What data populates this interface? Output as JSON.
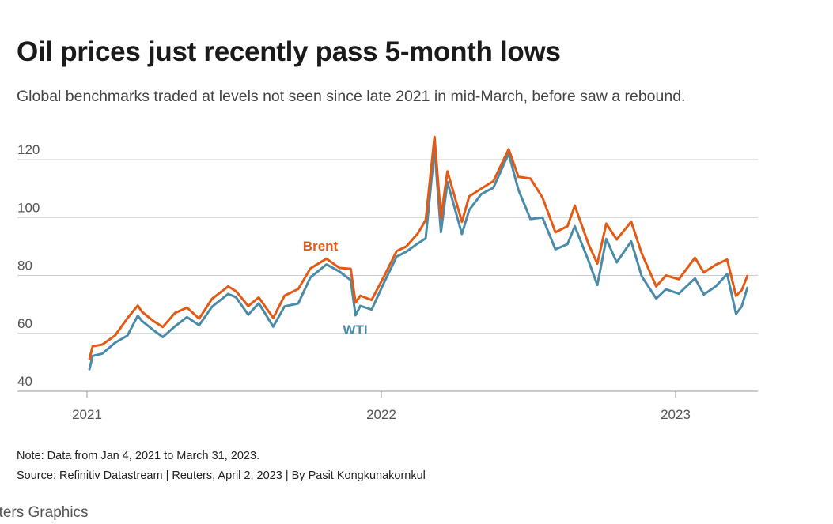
{
  "header": {
    "title": "Oil prices just recently pass 5-month lows",
    "subtitle": "Global benchmarks traded at levels not seen since late 2021 in mid-March, before saw a rebound."
  },
  "notes": {
    "note": "Note: Data from Jan 4, 2021 to March 31, 2023.",
    "source": "Source: Refinitiv Datastream | Reuters, April 2, 2023 | By Pasit Kongkunakornkul"
  },
  "footer": {
    "brand": "uters Graphics"
  },
  "colors": {
    "brent": "#e35a14",
    "wti": "#4a8ba8",
    "grid": "#cccccc",
    "axis": "#999999"
  },
  "chart_data": {
    "type": "line",
    "title": "Oil prices just recently pass 5-month lows",
    "xlabel": "",
    "ylabel": "",
    "ylim": [
      40,
      128
    ],
    "xlim": [
      "2021-01-04",
      "2023-04-30"
    ],
    "yticks": [
      40,
      60,
      80,
      100,
      120
    ],
    "xticks": [
      {
        "date": "2021-01-01",
        "label": "2021"
      },
      {
        "date": "2022-01-01",
        "label": "2022"
      },
      {
        "date": "2023-01-01",
        "label": "2023"
      }
    ],
    "grid": "horizontal",
    "x": [
      "2021-01-04",
      "2021-01-08",
      "2021-01-20",
      "2021-02-05",
      "2021-02-20",
      "2021-03-05",
      "2021-03-10",
      "2021-03-24",
      "2021-04-05",
      "2021-04-20",
      "2021-05-05",
      "2021-05-20",
      "2021-06-05",
      "2021-06-25",
      "2021-07-05",
      "2021-07-20",
      "2021-08-02",
      "2021-08-20",
      "2021-09-03",
      "2021-09-20",
      "2021-10-05",
      "2021-10-25",
      "2021-11-10",
      "2021-11-24",
      "2021-11-30",
      "2021-12-06",
      "2021-12-20",
      "2022-01-05",
      "2022-01-20",
      "2022-02-01",
      "2022-02-15",
      "2022-02-25",
      "2022-03-08",
      "2022-03-16",
      "2022-03-24",
      "2022-04-11",
      "2022-04-20",
      "2022-05-05",
      "2022-05-20",
      "2022-06-08",
      "2022-06-20",
      "2022-07-05",
      "2022-07-20",
      "2022-08-05",
      "2022-08-20",
      "2022-08-29",
      "2022-09-15",
      "2022-09-26",
      "2022-10-07",
      "2022-10-20",
      "2022-11-07",
      "2022-11-20",
      "2022-12-08",
      "2022-12-20",
      "2023-01-05",
      "2023-01-25",
      "2023-02-05",
      "2023-02-20",
      "2023-03-06",
      "2023-03-17",
      "2023-03-24",
      "2023-03-31"
    ],
    "series": [
      {
        "name": "Brent",
        "values": [
          51.1,
          55.5,
          56.1,
          59.3,
          65.2,
          69.6,
          67.5,
          64.3,
          62.2,
          67.0,
          68.9,
          65.1,
          71.9,
          76.2,
          74.5,
          69.4,
          72.4,
          65.3,
          73.0,
          75.3,
          82.4,
          85.8,
          82.6,
          82.3,
          70.6,
          73.0,
          71.5,
          80.0,
          88.4,
          90.0,
          94.4,
          99.1,
          127.9,
          99.9,
          116.0,
          98.5,
          107.3,
          110.0,
          112.6,
          123.6,
          114.1,
          113.5,
          106.9,
          94.9,
          97.0,
          104.1,
          90.8,
          84.1,
          97.9,
          92.4,
          98.6,
          87.6,
          76.2,
          80.0,
          78.7,
          86.1,
          81.0,
          83.7,
          85.5,
          72.9,
          74.9,
          79.8
        ]
      },
      {
        "name": "WTI",
        "values": [
          47.6,
          52.2,
          53.0,
          56.8,
          59.2,
          66.1,
          64.3,
          61.2,
          58.7,
          62.4,
          65.6,
          62.8,
          69.2,
          73.6,
          72.4,
          66.4,
          70.4,
          62.3,
          69.3,
          70.3,
          79.3,
          83.8,
          81.4,
          78.4,
          66.2,
          69.5,
          68.2,
          77.9,
          86.5,
          88.2,
          91.0,
          92.8,
          123.7,
          95.0,
          112.3,
          94.3,
          102.6,
          108.1,
          110.3,
          122.1,
          109.6,
          99.5,
          100.0,
          89.0,
          90.8,
          97.0,
          85.1,
          76.7,
          92.6,
          84.5,
          91.8,
          79.7,
          72.0,
          75.2,
          73.7,
          79.0,
          73.4,
          76.3,
          80.5,
          66.7,
          69.3,
          75.7
        ]
      }
    ],
    "annotations": [
      {
        "text": "Brent",
        "series": "Brent",
        "near": "2021-10-25"
      },
      {
        "text": "WTI",
        "series": "WTI",
        "near": "2021-12-01"
      }
    ]
  }
}
